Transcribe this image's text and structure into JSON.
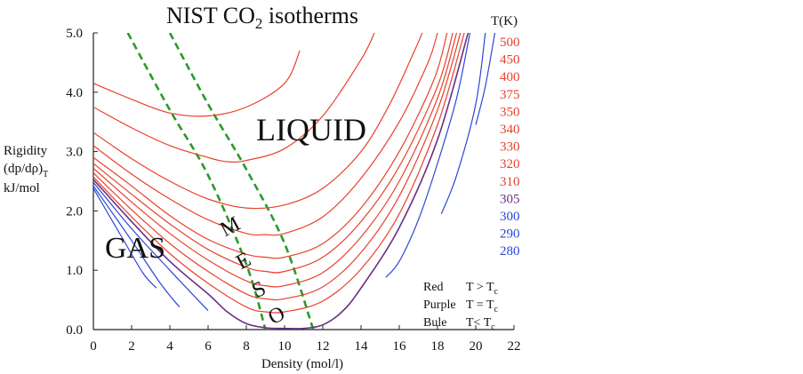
{
  "chart_data": {
    "type": "line",
    "title": "NIST CO",
    "title_subscript": "2",
    "title_suffix": " isotherms",
    "xlabel": "Density (mol/l)",
    "ylabel_lines": [
      "Rigidity",
      "(dp/dρ)",
      "kJ/mol"
    ],
    "ylabel_subscript": "T",
    "xlim": [
      0,
      22
    ],
    "ylim": [
      0,
      5
    ],
    "x_ticks": [
      "0",
      "2",
      "4",
      "6",
      "8",
      "10",
      "12",
      "14",
      "16",
      "18",
      "20",
      "22"
    ],
    "y_ticks": [
      "0.0",
      "1.0",
      "2.0",
      "3.0",
      "4.0",
      "5.0"
    ],
    "legend_title": "T(K)",
    "series": [
      {
        "name": "500",
        "color": "#e8412c",
        "points": [
          [
            0,
            4.15
          ],
          [
            2,
            3.88
          ],
          [
            4,
            3.65
          ],
          [
            6,
            3.6
          ],
          [
            8,
            3.75
          ],
          [
            10,
            4.15
          ],
          [
            10.8,
            4.7
          ]
        ]
      },
      {
        "name": "450",
        "color": "#e8412c",
        "points": [
          [
            0,
            3.75
          ],
          [
            2,
            3.4
          ],
          [
            4,
            3.1
          ],
          [
            6,
            2.9
          ],
          [
            7,
            2.83
          ],
          [
            8,
            2.85
          ],
          [
            10,
            3.05
          ],
          [
            12,
            3.6
          ],
          [
            14,
            4.55
          ],
          [
            14.7,
            5.0
          ]
        ]
      },
      {
        "name": "400",
        "color": "#e8412c",
        "points": [
          [
            0,
            3.32
          ],
          [
            2,
            2.88
          ],
          [
            4,
            2.5
          ],
          [
            6,
            2.2
          ],
          [
            8,
            2.05
          ],
          [
            10,
            2.1
          ],
          [
            12,
            2.38
          ],
          [
            14,
            3.0
          ],
          [
            15.5,
            3.8
          ],
          [
            16.8,
            4.7
          ],
          [
            17.2,
            5.0
          ]
        ]
      },
      {
        "name": "375",
        "color": "#e8412c",
        "points": [
          [
            0,
            3.1
          ],
          [
            2,
            2.62
          ],
          [
            4,
            2.2
          ],
          [
            6,
            1.85
          ],
          [
            8,
            1.62
          ],
          [
            9,
            1.6
          ],
          [
            10,
            1.62
          ],
          [
            12,
            1.9
          ],
          [
            14,
            2.55
          ],
          [
            16,
            3.5
          ],
          [
            17.5,
            4.5
          ],
          [
            18,
            5.0
          ]
        ]
      },
      {
        "name": "350",
        "color": "#e8412c",
        "points": [
          [
            0,
            2.9
          ],
          [
            2,
            2.42
          ],
          [
            4,
            1.92
          ],
          [
            6,
            1.52
          ],
          [
            8,
            1.27
          ],
          [
            9,
            1.22
          ],
          [
            10,
            1.22
          ],
          [
            12,
            1.45
          ],
          [
            14,
            2.05
          ],
          [
            16,
            3.0
          ],
          [
            17.8,
            4.2
          ],
          [
            18.5,
            5.0
          ]
        ]
      },
      {
        "name": "340",
        "color": "#e8412c",
        "points": [
          [
            0,
            2.8
          ],
          [
            2,
            2.28
          ],
          [
            4,
            1.78
          ],
          [
            6,
            1.35
          ],
          [
            8,
            1.05
          ],
          [
            9,
            0.98
          ],
          [
            10,
            0.98
          ],
          [
            12,
            1.22
          ],
          [
            14,
            1.82
          ],
          [
            16,
            2.75
          ],
          [
            18,
            4.1
          ],
          [
            18.8,
            5.0
          ]
        ]
      },
      {
        "name": "330",
        "color": "#e8412c",
        "points": [
          [
            0,
            2.72
          ],
          [
            2,
            2.15
          ],
          [
            4,
            1.62
          ],
          [
            6,
            1.17
          ],
          [
            8,
            0.82
          ],
          [
            9,
            0.74
          ],
          [
            10,
            0.74
          ],
          [
            12,
            0.96
          ],
          [
            14,
            1.56
          ],
          [
            16,
            2.5
          ],
          [
            18,
            3.9
          ],
          [
            19,
            5.0
          ]
        ]
      },
      {
        "name": "320",
        "color": "#e8412c",
        "points": [
          [
            0,
            2.64
          ],
          [
            2,
            2.02
          ],
          [
            4,
            1.45
          ],
          [
            6,
            0.98
          ],
          [
            8,
            0.6
          ],
          [
            9,
            0.52
          ],
          [
            10,
            0.52
          ],
          [
            12,
            0.72
          ],
          [
            14,
            1.3
          ],
          [
            16,
            2.25
          ],
          [
            18,
            3.7
          ],
          [
            19.2,
            5.0
          ]
        ]
      },
      {
        "name": "310",
        "color": "#e8412c",
        "points": [
          [
            0,
            2.57
          ],
          [
            2,
            1.9
          ],
          [
            4,
            1.28
          ],
          [
            6,
            0.78
          ],
          [
            8,
            0.38
          ],
          [
            9,
            0.3
          ],
          [
            10,
            0.3
          ],
          [
            12,
            0.48
          ],
          [
            14,
            1.02
          ],
          [
            16,
            1.95
          ],
          [
            18,
            3.45
          ],
          [
            19.4,
            5.0
          ]
        ]
      },
      {
        "name": "305",
        "color": "#6b2f86",
        "points": [
          [
            0,
            2.53
          ],
          [
            2,
            1.82
          ],
          [
            4,
            1.15
          ],
          [
            6,
            0.6
          ],
          [
            7,
            0.3
          ],
          [
            8,
            0.1
          ],
          [
            9,
            0.03
          ],
          [
            10,
            0.02
          ],
          [
            11,
            0.02
          ],
          [
            12,
            0.08
          ],
          [
            13,
            0.3
          ],
          [
            14,
            0.7
          ],
          [
            16,
            1.72
          ],
          [
            18,
            3.2
          ],
          [
            19.6,
            5.0
          ]
        ]
      },
      {
        "name": "300",
        "color": "#2b46d6",
        "segments": [
          [
            [
              0,
              2.48
            ],
            [
              2,
              1.7
            ],
            [
              4,
              1.0
            ],
            [
              6,
              0.32
            ]
          ],
          [
            [
              15.3,
              0.88
            ],
            [
              16,
              1.15
            ],
            [
              17,
              1.85
            ],
            [
              18,
              2.8
            ],
            [
              19,
              3.9
            ],
            [
              19.7,
              5.0
            ]
          ]
        ]
      },
      {
        "name": "290",
        "color": "#2b46d6",
        "segments": [
          [
            [
              0,
              2.42
            ],
            [
              2,
              1.5
            ],
            [
              3.5,
              0.78
            ],
            [
              4.5,
              0.38
            ]
          ],
          [
            [
              18.2,
              1.95
            ],
            [
              19,
              2.6
            ],
            [
              20,
              3.8
            ],
            [
              20.5,
              5.0
            ]
          ]
        ]
      },
      {
        "name": "280",
        "color": "#2b46d6",
        "segments": [
          [
            [
              0,
              2.38
            ],
            [
              1.5,
              1.55
            ],
            [
              2.6,
              0.95
            ],
            [
              3.3,
              0.7
            ]
          ],
          [
            [
              20.0,
              3.45
            ],
            [
              20.5,
              4.1
            ],
            [
              21.0,
              5.0
            ]
          ]
        ]
      }
    ],
    "boundaries": [
      {
        "color": "#2a9a2a",
        "style": "dashed",
        "points": [
          [
            1.8,
            5.0
          ],
          [
            4.0,
            3.7
          ],
          [
            6.0,
            2.6
          ],
          [
            8.0,
            1.1
          ],
          [
            9.0,
            0.0
          ]
        ]
      },
      {
        "color": "#2a9a2a",
        "style": "dashed",
        "points": [
          [
            4.0,
            5.0
          ],
          [
            6.0,
            3.8
          ],
          [
            8.0,
            2.7
          ],
          [
            10.0,
            1.45
          ],
          [
            11.5,
            0.0
          ]
        ]
      }
    ],
    "region_labels": {
      "gas": "GAS",
      "liquid": "LIQUID",
      "meso": [
        "M",
        "E",
        "S",
        "O"
      ]
    },
    "note": [
      {
        "label": "Red",
        "cond": "T > T",
        "sub": "c"
      },
      {
        "label": "Purple",
        "cond": "T = T",
        "sub": "c"
      },
      {
        "label": "Bule",
        "cond": "T< T",
        "sub": "c"
      }
    ],
    "grid": false,
    "legend_placement": "right"
  }
}
